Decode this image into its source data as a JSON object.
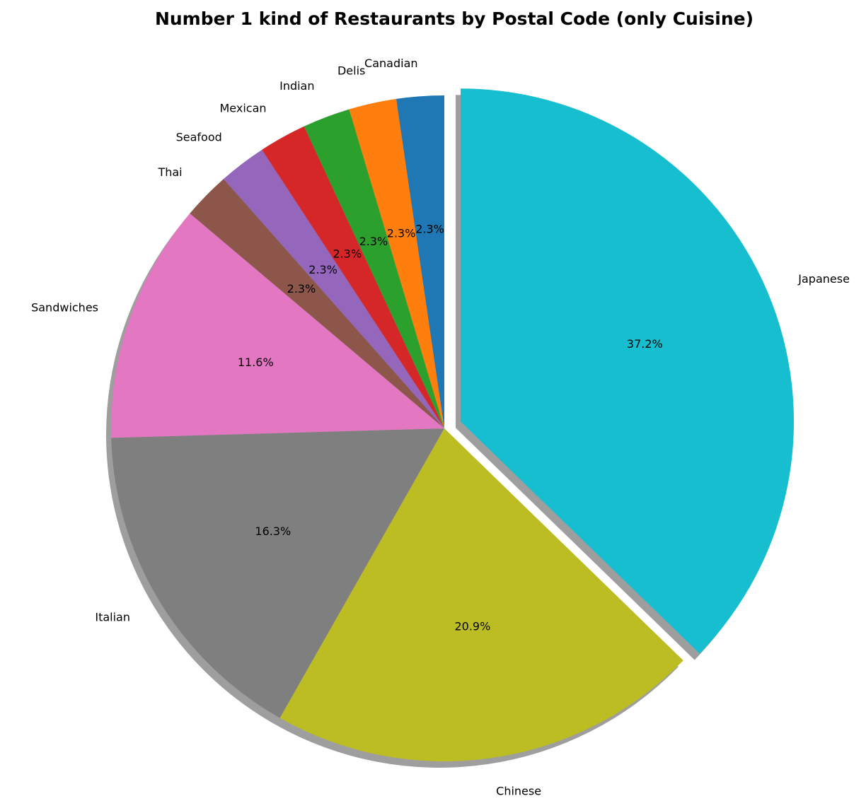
{
  "chart_data": {
    "type": "pie",
    "title": "Number 1 kind of Restaurants by Postal Code (only Cuisine)",
    "slices": [
      {
        "label": "Japanese",
        "value": 37.2,
        "pct_label": "37.2%",
        "color": "#17becf",
        "exploded": true
      },
      {
        "label": "Chinese",
        "value": 20.9,
        "pct_label": "20.9%",
        "color": "#bcbd22",
        "exploded": false
      },
      {
        "label": "Italian",
        "value": 16.3,
        "pct_label": "16.3%",
        "color": "#7f7f7f",
        "exploded": false
      },
      {
        "label": "Sandwiches",
        "value": 11.6,
        "pct_label": "11.6%",
        "color": "#e377c2",
        "exploded": false
      },
      {
        "label": "Thai",
        "value": 2.3,
        "pct_label": "2.3%",
        "color": "#8c564b",
        "exploded": false
      },
      {
        "label": "Seafood",
        "value": 2.3,
        "pct_label": "2.3%",
        "color": "#9467bd",
        "exploded": false
      },
      {
        "label": "Mexican",
        "value": 2.3,
        "pct_label": "2.3%",
        "color": "#d62728",
        "exploded": false
      },
      {
        "label": "Indian",
        "value": 2.3,
        "pct_label": "2.3%",
        "color": "#2ca02c",
        "exploded": false
      },
      {
        "label": "Delis",
        "value": 2.3,
        "pct_label": "2.3%",
        "color": "#ff7f0e",
        "exploded": false
      },
      {
        "label": "Canadian",
        "value": 2.3,
        "pct_label": "2.3%",
        "color": "#1f77b4",
        "exploded": false
      }
    ],
    "start_angle": "top, clockwise",
    "shadow": true,
    "legend": "none"
  }
}
